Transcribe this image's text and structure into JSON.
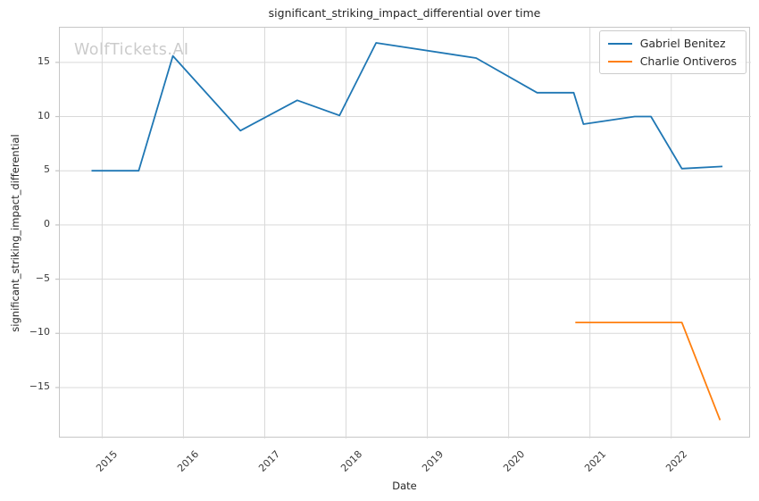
{
  "figure": {
    "title": "significant_striking_impact_differential over time",
    "watermark": "WolfTickets.AI"
  },
  "chart_data": {
    "type": "line",
    "title": "significant_striking_impact_differential over time",
    "xlabel": "Date",
    "ylabel": "significant_striking_impact_differential",
    "grid": true,
    "legend_position": "upper right",
    "x_axis": {
      "ticks": [
        2015,
        2016,
        2017,
        2018,
        2019,
        2020,
        2021,
        2022
      ],
      "lim": [
        2014.48,
        2022.98
      ],
      "tick_rotation_deg": 45
    },
    "y_axis": {
      "ticks": [
        -15,
        -10,
        -5,
        0,
        5,
        10,
        15
      ],
      "lim": [
        -19.7,
        18.2
      ]
    },
    "colors": {
      "grid": "#d9d9d9",
      "spine": "#c6c6c6",
      "text": "#262626",
      "tick_text": "#3a3a3a",
      "watermark": "#cbcbcb",
      "blue": "#1f77b4",
      "orange": "#ff7f0e"
    },
    "series": [
      {
        "name": "Gabriel Benitez",
        "color": "#1f77b4",
        "points": [
          [
            2014.87,
            5.0
          ],
          [
            2015.45,
            5.0
          ],
          [
            2015.87,
            15.6
          ],
          [
            2016.7,
            8.7
          ],
          [
            2017.4,
            11.5
          ],
          [
            2017.92,
            10.1
          ],
          [
            2018.37,
            16.8
          ],
          [
            2019.6,
            15.4
          ],
          [
            2020.35,
            12.2
          ],
          [
            2020.8,
            12.2
          ],
          [
            2020.92,
            9.3
          ],
          [
            2021.55,
            10.0
          ],
          [
            2021.75,
            10.0
          ],
          [
            2022.13,
            5.2
          ],
          [
            2022.63,
            5.4
          ]
        ]
      },
      {
        "name": "Charlie Ontiveros",
        "color": "#ff7f0e",
        "points": [
          [
            2020.82,
            -9.0
          ],
          [
            2022.13,
            -9.0
          ],
          [
            2022.6,
            -18.0
          ]
        ]
      }
    ]
  }
}
